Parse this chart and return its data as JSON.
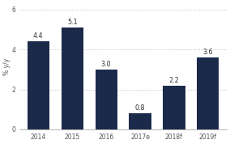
{
  "categories": [
    "2014",
    "2015",
    "2016",
    "2017e",
    "2018f",
    "2019f"
  ],
  "values": [
    4.4,
    5.1,
    3.0,
    0.8,
    2.2,
    3.6
  ],
  "bar_color": "#1b2a4a",
  "ylabel": "% y/y",
  "ylim": [
    0,
    6.3
  ],
  "yticks": [
    0,
    2,
    4,
    6
  ],
  "grid_color": "#bbbbbb",
  "background_color": "#ffffff",
  "label_fontsize": 5.8,
  "axis_fontsize": 5.5,
  "bar_width": 0.65
}
